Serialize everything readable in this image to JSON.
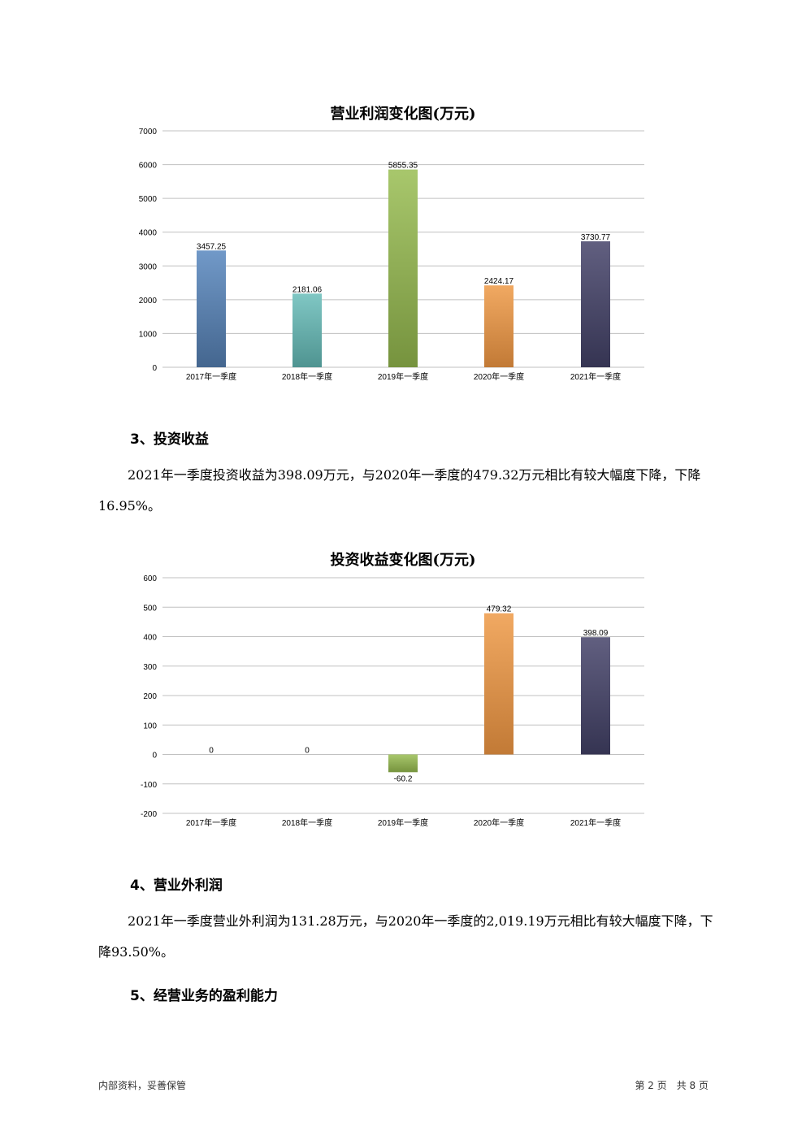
{
  "chart_data": [
    {
      "type": "bar",
      "title": "营业利润变化图(万元)",
      "categories": [
        "2017年一季度",
        "2018年一季度",
        "2019年一季度",
        "2020年一季度",
        "2021年一季度"
      ],
      "values": [
        3457.25,
        2181.06,
        5855.35,
        2424.17,
        3730.77
      ],
      "data_labels": [
        "3457.25",
        "2181.06",
        "5855.35",
        "2424.17",
        "3730.77"
      ],
      "ylim": [
        0,
        7000
      ],
      "yticks": [
        "0",
        "1000",
        "2000",
        "3000",
        "4000",
        "5000",
        "6000",
        "7000"
      ],
      "grid": true,
      "legend": "none",
      "colors": [
        [
          "#7199c8",
          "#44668f"
        ],
        [
          "#80c7c4",
          "#4f9491"
        ],
        [
          "#a8c76c",
          "#76933e"
        ],
        [
          "#f1a962",
          "#c27a36"
        ],
        [
          "#615f80",
          "#353452"
        ]
      ]
    },
    {
      "type": "bar",
      "title": "投资收益变化图(万元)",
      "categories": [
        "2017年一季度",
        "2018年一季度",
        "2019年一季度",
        "2020年一季度",
        "2021年一季度"
      ],
      "values": [
        0,
        0,
        -60.2,
        479.32,
        398.09
      ],
      "data_labels": [
        "0",
        "0",
        "-60.2",
        "479.32",
        "398.09"
      ],
      "ylim": [
        -200,
        600
      ],
      "yticks": [
        "-200",
        "-100",
        "0",
        "100",
        "200",
        "300",
        "400",
        "500",
        "600"
      ],
      "grid": true,
      "legend": "none",
      "colors": [
        [
          "#7199c8",
          "#44668f"
        ],
        [
          "#80c7c4",
          "#4f9491"
        ],
        [
          "#a8c76c",
          "#76933e"
        ],
        [
          "#f1a962",
          "#c27a36"
        ],
        [
          "#615f80",
          "#353452"
        ]
      ]
    }
  ],
  "sections": [
    {
      "heading": "3、投资收益",
      "text": "2021年一季度投资收益为398.09万元，与2020年一季度的479.32万元相比有较大幅度下降，下降16.95%。"
    },
    {
      "heading": "4、营业外利润",
      "text": "2021年一季度营业外利润为131.28万元，与2020年一季度的2,019.19万元相比有较大幅度下降，下降93.50%。"
    },
    {
      "heading": "5、经营业务的盈利能力"
    }
  ],
  "footer": {
    "left": "内部资料，妥善保管",
    "right": "第 2 页　共 8 页"
  }
}
